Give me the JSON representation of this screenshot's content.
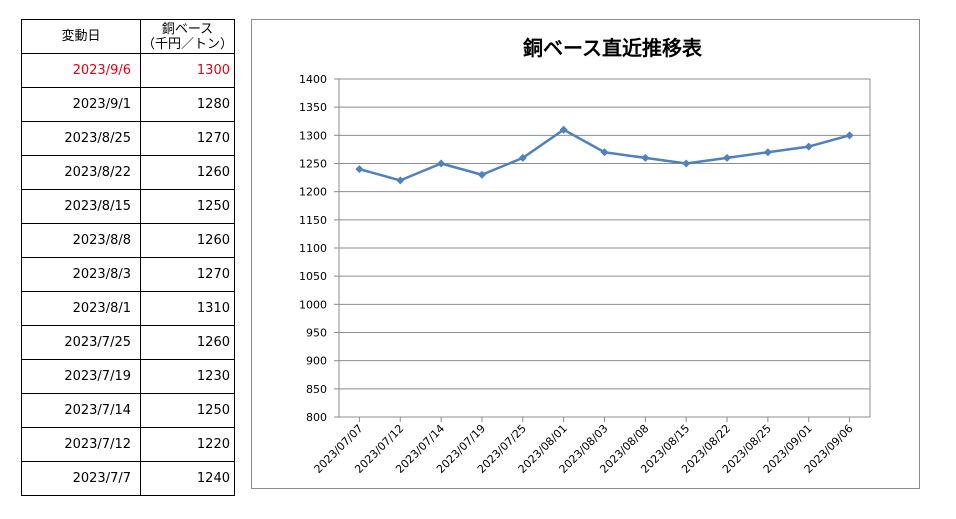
{
  "table": {
    "header": {
      "date": "変動日",
      "price_line1": "銅ベース",
      "price_line2": "（千円／トン）"
    },
    "rows": [
      {
        "date": "2023/9/6",
        "price": "1300",
        "latest": true
      },
      {
        "date": "2023/9/1",
        "price": "1280"
      },
      {
        "date": "2023/8/25",
        "price": "1270"
      },
      {
        "date": "2023/8/22",
        "price": "1260"
      },
      {
        "date": "2023/8/15",
        "price": "1250"
      },
      {
        "date": "2023/8/8",
        "price": "1260"
      },
      {
        "date": "2023/8/3",
        "price": "1270"
      },
      {
        "date": "2023/8/1",
        "price": "1310"
      },
      {
        "date": "2023/7/25",
        "price": "1260"
      },
      {
        "date": "2023/7/19",
        "price": "1230"
      },
      {
        "date": "2023/7/14",
        "price": "1250"
      },
      {
        "date": "2023/7/12",
        "price": "1220"
      },
      {
        "date": "2023/7/7",
        "price": "1240"
      }
    ],
    "latest_color": "#e60012"
  },
  "chart_data": {
    "type": "line",
    "title": "銅ベース直近推移表",
    "xlabel": "",
    "ylabel": "",
    "categories": [
      "2023/07/07",
      "2023/07/12",
      "2023/07/14",
      "2023/07/19",
      "2023/07/25",
      "2023/08/01",
      "2023/08/03",
      "2023/08/08",
      "2023/08/15",
      "2023/08/22",
      "2023/08/25",
      "2023/09/01",
      "2023/09/06"
    ],
    "series": [
      {
        "values": [
          1240,
          1220,
          1250,
          1230,
          1260,
          1310,
          1270,
          1260,
          1250,
          1260,
          1270,
          1280,
          1300
        ],
        "color": "#4f81bd"
      }
    ],
    "ylim": [
      800,
      1400
    ],
    "yticks": [
      800,
      850,
      900,
      950,
      1000,
      1050,
      1100,
      1150,
      1200,
      1250,
      1300,
      1350,
      1400
    ],
    "grid": true,
    "legend": "none"
  }
}
